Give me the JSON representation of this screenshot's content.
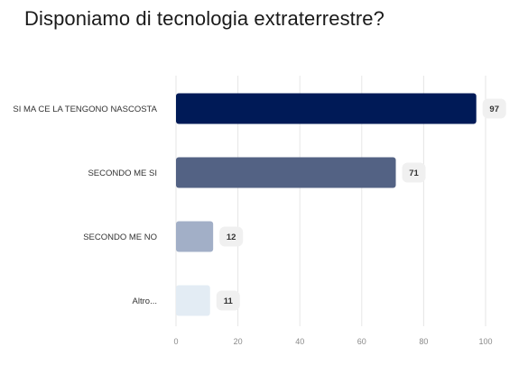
{
  "chart_data": {
    "type": "bar",
    "orientation": "horizontal",
    "title": "Disponiamo di tecnologia extraterrestre?",
    "categories": [
      "SI MA CE LA TENGONO NASCOSTA",
      "SECONDO ME SI",
      "SECONDO ME NO",
      "Altro..."
    ],
    "values": [
      97,
      71,
      12,
      11
    ],
    "colors": [
      "#001a57",
      "#536284",
      "#a2afc7",
      "#e3ecf4"
    ],
    "xlim": [
      0,
      100
    ],
    "xticks": [
      0,
      20,
      40,
      60,
      80,
      100
    ],
    "grid": true,
    "data_labels": true
  }
}
